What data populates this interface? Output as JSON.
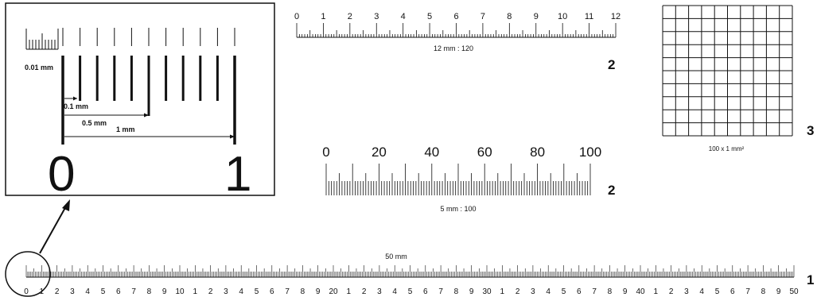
{
  "detail": {
    "label_001": "0.01 mm",
    "label_01": "0.1 mm",
    "label_05": "0.5 mm",
    "label_1": "1 mm",
    "digit_0": "0",
    "digit_1": "1"
  },
  "scale_12mm": {
    "numbers": [
      "0",
      "1",
      "2",
      "3",
      "4",
      "5",
      "6",
      "7",
      "8",
      "9",
      "10",
      "11",
      "12"
    ],
    "caption": "12 mm : 120",
    "number": "2"
  },
  "scale_5mm": {
    "numbers": [
      "0",
      "20",
      "40",
      "60",
      "80",
      "100"
    ],
    "caption": "5 mm : 100",
    "number": "2"
  },
  "grid": {
    "caption": "100 x 1 mm²",
    "number": "3"
  },
  "scale_50mm": {
    "caption": "50 mm",
    "number": "1",
    "numbers": [
      "0",
      "1",
      "2",
      "3",
      "4",
      "5",
      "6",
      "7",
      "8",
      "9",
      "10",
      "1",
      "2",
      "3",
      "4",
      "5",
      "6",
      "7",
      "8",
      "9",
      "20",
      "1",
      "2",
      "3",
      "4",
      "5",
      "6",
      "7",
      "8",
      "9",
      "30",
      "1",
      "2",
      "3",
      "4",
      "5",
      "6",
      "7",
      "8",
      "9",
      "40",
      "1",
      "2",
      "3",
      "4",
      "5",
      "6",
      "7",
      "8",
      "9",
      "50"
    ]
  }
}
